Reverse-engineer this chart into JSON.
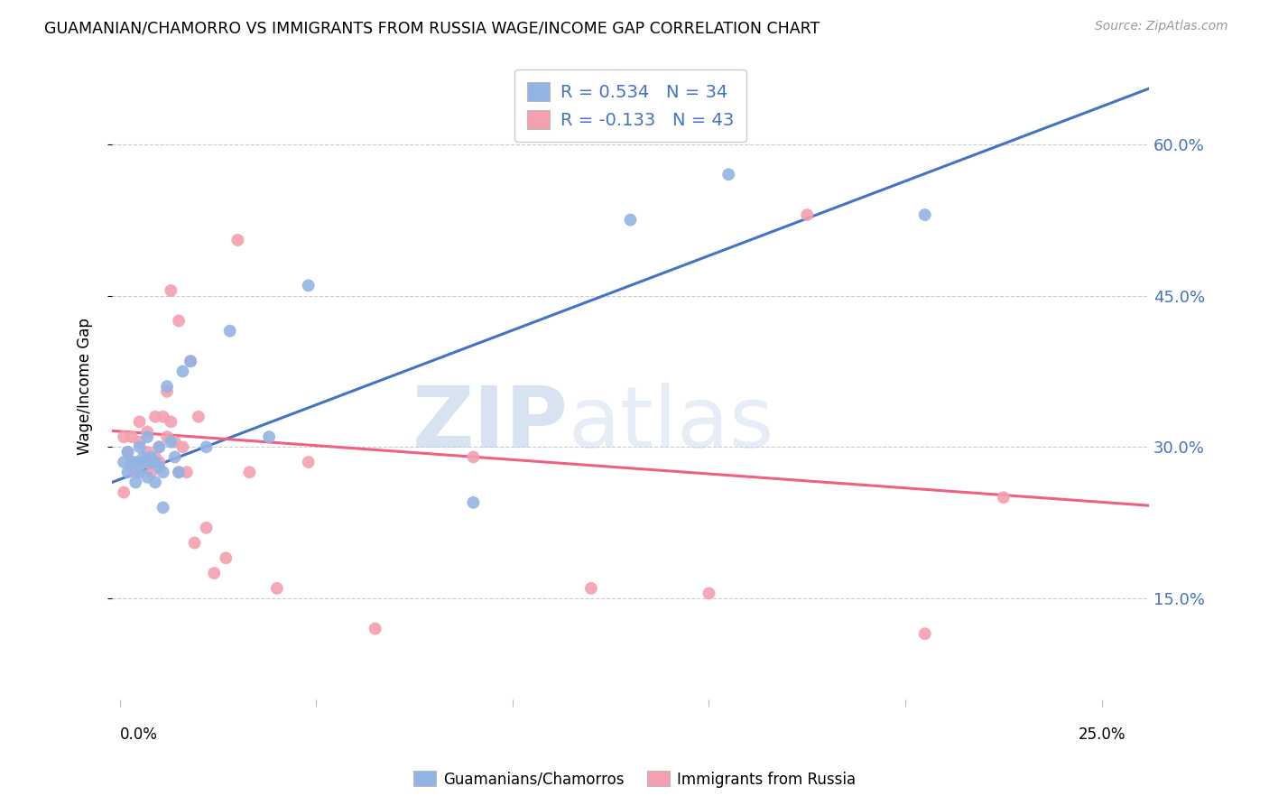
{
  "title": "GUAMANIAN/CHAMORRO VS IMMIGRANTS FROM RUSSIA WAGE/INCOME GAP CORRELATION CHART",
  "source_text": "Source: ZipAtlas.com",
  "ylabel": "Wage/Income Gap",
  "y_ticks_pct": [
    0.15,
    0.3,
    0.45,
    0.6
  ],
  "y_min": 0.05,
  "y_max": 0.67,
  "x_min": -0.002,
  "x_max": 0.262,
  "blue_R": 0.534,
  "blue_N": 34,
  "pink_R": -0.133,
  "pink_N": 43,
  "blue_color": "#92B4E3",
  "pink_color": "#F4A0B0",
  "blue_line_color": "#4472C4",
  "pink_line_color": "#F06080",
  "blue_label": "Guamanians/Chamorros",
  "pink_label": "Immigrants from Russia",
  "watermark_zip": "ZIP",
  "watermark_atlas": "atlas",
  "blue_line_x0": -0.002,
  "blue_line_y0": 0.265,
  "blue_line_x1": 0.262,
  "blue_line_y1": 0.655,
  "pink_line_x0": -0.002,
  "pink_line_y0": 0.316,
  "pink_line_x1": 0.262,
  "pink_line_y1": 0.242,
  "blue_scatter_x": [
    0.001,
    0.002,
    0.002,
    0.003,
    0.004,
    0.004,
    0.005,
    0.005,
    0.006,
    0.006,
    0.007,
    0.007,
    0.008,
    0.008,
    0.009,
    0.009,
    0.01,
    0.01,
    0.011,
    0.011,
    0.012,
    0.013,
    0.014,
    0.015,
    0.016,
    0.018,
    0.022,
    0.028,
    0.038,
    0.048,
    0.09,
    0.13,
    0.155,
    0.205
  ],
  "blue_scatter_y": [
    0.285,
    0.275,
    0.295,
    0.285,
    0.265,
    0.285,
    0.275,
    0.3,
    0.285,
    0.29,
    0.27,
    0.31,
    0.285,
    0.29,
    0.265,
    0.285,
    0.3,
    0.28,
    0.24,
    0.275,
    0.36,
    0.305,
    0.29,
    0.275,
    0.375,
    0.385,
    0.3,
    0.415,
    0.31,
    0.46,
    0.245,
    0.525,
    0.57,
    0.53
  ],
  "pink_scatter_x": [
    0.001,
    0.001,
    0.002,
    0.003,
    0.003,
    0.004,
    0.005,
    0.005,
    0.006,
    0.007,
    0.007,
    0.008,
    0.009,
    0.009,
    0.01,
    0.01,
    0.011,
    0.012,
    0.012,
    0.013,
    0.013,
    0.014,
    0.015,
    0.015,
    0.016,
    0.017,
    0.018,
    0.019,
    0.02,
    0.022,
    0.024,
    0.027,
    0.03,
    0.033,
    0.04,
    0.048,
    0.065,
    0.09,
    0.12,
    0.15,
    0.175,
    0.205,
    0.225
  ],
  "pink_scatter_y": [
    0.255,
    0.31,
    0.295,
    0.28,
    0.31,
    0.275,
    0.325,
    0.305,
    0.285,
    0.295,
    0.315,
    0.275,
    0.29,
    0.33,
    0.285,
    0.3,
    0.33,
    0.31,
    0.355,
    0.325,
    0.455,
    0.305,
    0.425,
    0.275,
    0.3,
    0.275,
    0.385,
    0.205,
    0.33,
    0.22,
    0.175,
    0.19,
    0.505,
    0.275,
    0.16,
    0.285,
    0.12,
    0.29,
    0.16,
    0.155,
    0.53,
    0.115,
    0.25
  ]
}
